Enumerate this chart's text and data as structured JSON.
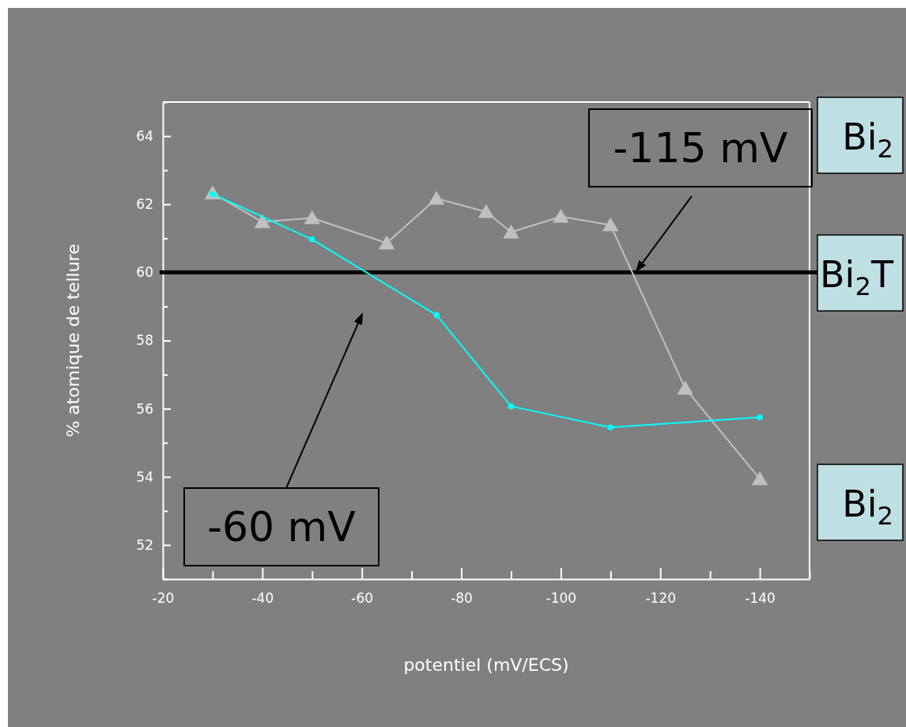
{
  "chart_data": {
    "type": "line",
    "xlabel": "potentiel (mV/ECS)",
    "ylabel": "% atomique de tellure",
    "xlim": [
      -20,
      -150
    ],
    "ylim": [
      51,
      65
    ],
    "xticks": [
      -20,
      {
        "value": -30,
        "label": null
      },
      -40,
      {
        "value": -50,
        "label": null
      },
      -60,
      {
        "value": -70,
        "label": null
      },
      -80,
      {
        "value": -90,
        "label": null
      },
      -100,
      {
        "value": -110,
        "label": null
      },
      -120,
      {
        "value": -130,
        "label": null
      },
      -140,
      {
        "value": -150,
        "label": null
      }
    ],
    "yticks": [
      {
        "value": 51,
        "label": null
      },
      52,
      {
        "value": 53,
        "label": null
      },
      54,
      {
        "value": 55,
        "label": null
      },
      56,
      {
        "value": 57,
        "label": null
      },
      58,
      {
        "value": 59,
        "label": null
      },
      60,
      {
        "value": 61,
        "label": null
      },
      62,
      {
        "value": 63,
        "label": null
      },
      64,
      {
        "value": 65,
        "label": null
      }
    ],
    "grid": false,
    "line_style": "solid",
    "series": [
      {
        "color": "#c0c0c0",
        "marker": "triangle",
        "x": [
          -30,
          -40,
          -50,
          -65,
          -75,
          -85,
          -90,
          -100,
          -110,
          -125,
          -140
        ],
        "values": [
          62.33,
          61.48,
          61.6,
          60.86,
          62.17,
          61.78,
          61.18,
          61.64,
          61.39,
          56.6,
          53.94
        ]
      },
      {
        "color": "#00ffff",
        "marker": "circle",
        "x": [
          -30,
          -50,
          -75,
          -90,
          -110,
          -140
        ],
        "values": [
          62.3,
          60.97,
          58.75,
          56.07,
          55.45,
          55.75
        ]
      }
    ],
    "ref_lines": [
      {
        "axis": "y",
        "value": 60,
        "color": "#000000"
      }
    ],
    "annotations": [
      {
        "text": "-115 mV",
        "x": -115,
        "y": 60
      },
      "-60 mV",
      "Bi$_{2}$",
      "Bi$_{2}$T",
      "Bi$_{2}$"
    ]
  }
}
